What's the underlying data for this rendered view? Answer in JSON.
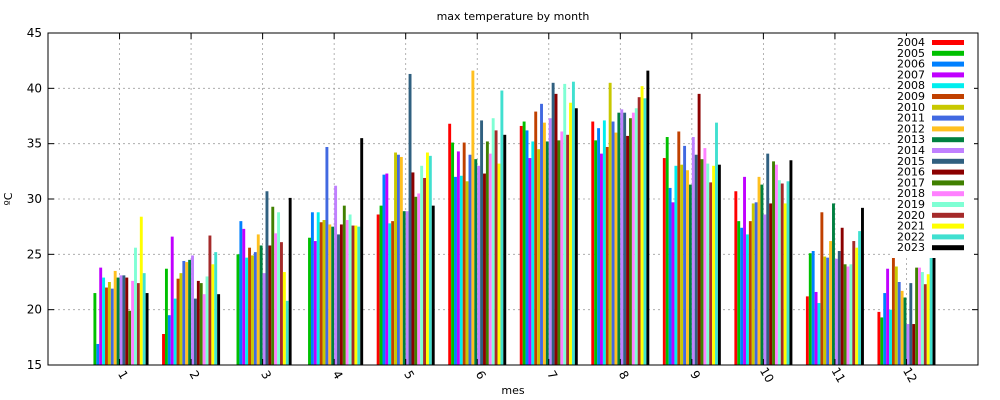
{
  "chart_data": {
    "type": "bar",
    "title": "max temperature by month",
    "xlabel": "mes",
    "ylabel": "ºC",
    "ylim": [
      15,
      45
    ],
    "yticks": [
      15,
      20,
      25,
      30,
      35,
      40,
      45
    ],
    "grid": true,
    "legend_position": "top-right",
    "categories": [
      "1",
      "2",
      "3",
      "4",
      "5",
      "6",
      "7",
      "8",
      "9",
      "10",
      "11",
      "12"
    ],
    "series": [
      {
        "name": "2004",
        "color": "#ff0000",
        "values": [
          null,
          17.8,
          null,
          null,
          28.6,
          36.8,
          36.6,
          37.0,
          33.7,
          30.7,
          21.2,
          19.8
        ]
      },
      {
        "name": "2005",
        "color": "#00c000",
        "values": [
          21.5,
          23.7,
          25.0,
          26.5,
          29.4,
          35.1,
          37.0,
          35.3,
          35.6,
          28.0,
          25.1,
          19.3
        ]
      },
      {
        "name": "2006",
        "color": "#0080ff",
        "values": [
          16.9,
          19.5,
          28.0,
          28.8,
          32.2,
          32.0,
          36.2,
          36.4,
          31.0,
          27.4,
          25.3,
          21.5
        ]
      },
      {
        "name": "2007",
        "color": "#c000ff",
        "values": [
          23.8,
          26.6,
          27.3,
          26.2,
          32.3,
          34.3,
          33.7,
          34.1,
          29.7,
          32.0,
          21.6,
          23.7
        ]
      },
      {
        "name": "2008",
        "color": "#00eeee",
        "values": [
          22.9,
          21.0,
          24.7,
          28.8,
          27.8,
          32.1,
          35.2,
          37.1,
          33.0,
          26.8,
          20.6,
          20.0
        ]
      },
      {
        "name": "2009",
        "color": "#c04000",
        "values": [
          22.0,
          22.8,
          25.6,
          27.9,
          28.0,
          35.1,
          37.9,
          34.7,
          36.1,
          28.0,
          28.8,
          24.8
        ]
      },
      {
        "name": "2010",
        "color": "#c8c800",
        "values": [
          22.5,
          23.3,
          24.9,
          28.1,
          34.2,
          31.6,
          34.5,
          40.5,
          33.1,
          29.6,
          24.8,
          23.9
        ]
      },
      {
        "name": "2011",
        "color": "#4169e1",
        "values": [
          21.9,
          24.4,
          25.2,
          34.7,
          34.0,
          34.0,
          38.6,
          37.0,
          34.8,
          29.7,
          24.7,
          22.5
        ]
      },
      {
        "name": "2012",
        "color": "#ffc020",
        "values": [
          23.5,
          24.3,
          26.8,
          27.7,
          33.8,
          41.6,
          36.9,
          36.0,
          32.6,
          32.0,
          26.2,
          21.7
        ]
      },
      {
        "name": "2013",
        "color": "#008040",
        "values": [
          22.9,
          24.5,
          25.8,
          27.5,
          28.9,
          33.6,
          35.2,
          37.8,
          31.3,
          31.3,
          29.6,
          21.1
        ]
      },
      {
        "name": "2014",
        "color": "#c080ff",
        "values": [
          23.1,
          24.9,
          23.3,
          31.2,
          28.9,
          33.0,
          37.3,
          38.1,
          35.6,
          28.6,
          24.6,
          18.7
        ]
      },
      {
        "name": "2015",
        "color": "#306080",
        "values": [
          23.1,
          21.0,
          30.7,
          26.8,
          41.3,
          37.1,
          40.5,
          37.8,
          34.0,
          34.1,
          25.3,
          22.4
        ]
      },
      {
        "name": "2016",
        "color": "#8b0000",
        "values": [
          22.9,
          22.6,
          25.8,
          27.7,
          32.4,
          32.3,
          39.5,
          35.7,
          39.5,
          29.6,
          27.4,
          18.7
        ]
      },
      {
        "name": "2017",
        "color": "#408000",
        "values": [
          19.9,
          22.4,
          29.3,
          29.4,
          30.2,
          35.2,
          35.3,
          37.3,
          33.6,
          33.4,
          24.1,
          23.8
        ]
      },
      {
        "name": "2018",
        "color": "#ff80ff",
        "values": [
          22.6,
          21.4,
          26.9,
          28.1,
          30.5,
          34.1,
          36.1,
          37.8,
          34.6,
          33.1,
          23.9,
          23.8
        ]
      },
      {
        "name": "2019",
        "color": "#7fffd4",
        "values": [
          25.6,
          23.0,
          28.8,
          28.6,
          33.0,
          37.3,
          40.4,
          38.2,
          33.2,
          31.7,
          24.1,
          23.4
        ]
      },
      {
        "name": "2020",
        "color": "#a52a2a",
        "values": [
          22.4,
          26.7,
          26.1,
          27.6,
          31.9,
          36.2,
          35.8,
          39.2,
          31.5,
          31.4,
          26.2,
          22.3
        ]
      },
      {
        "name": "2021",
        "color": "#ffff00",
        "values": [
          28.4,
          24.1,
          23.4,
          27.6,
          34.2,
          33.2,
          38.7,
          40.2,
          33.0,
          29.6,
          25.6,
          23.2
        ]
      },
      {
        "name": "2022",
        "color": "#40e0d0",
        "values": [
          23.3,
          25.2,
          20.8,
          27.5,
          33.9,
          39.8,
          40.6,
          39.1,
          36.9,
          31.6,
          27.1,
          25.5
        ]
      },
      {
        "name": "2023",
        "color": "#000000",
        "values": [
          21.5,
          21.4,
          30.1,
          35.5,
          29.4,
          35.8,
          38.2,
          41.6,
          33.1,
          33.5,
          29.2,
          26.2
        ]
      }
    ]
  }
}
